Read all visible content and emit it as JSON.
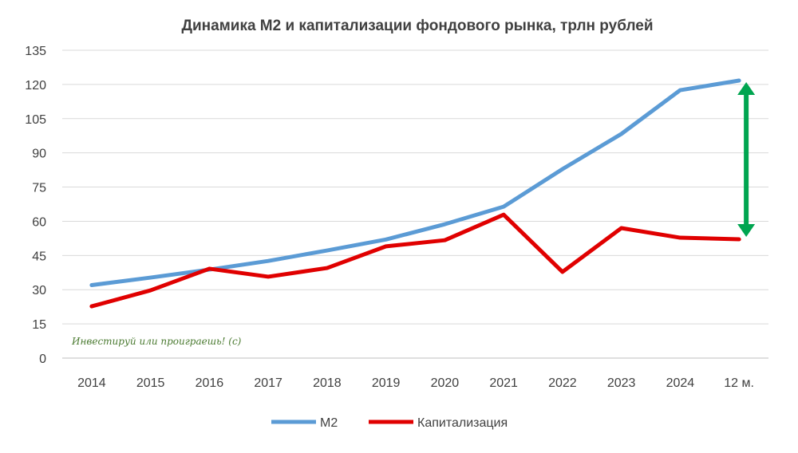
{
  "chart_data": {
    "type": "line",
    "title": "Динамика М2 и капитализации фондового рынка, трлн рублей",
    "categories": [
      "2014",
      "2015",
      "2016",
      "2017",
      "2018",
      "2019",
      "2020",
      "2021",
      "2022",
      "2023",
      "2024",
      "12 м."
    ],
    "series": [
      {
        "name": "М2",
        "color": "#5b9bd5",
        "values": [
          32,
          35.3,
          38.8,
          42.6,
          47.2,
          52,
          58.7,
          66.4,
          82.9,
          98.3,
          117.5,
          121.7
        ]
      },
      {
        "name": "Капитализация",
        "color": "#e00000",
        "values": [
          22.7,
          29.7,
          39.2,
          35.7,
          39.5,
          49,
          51.7,
          62.9,
          37.8,
          57,
          52.8,
          52.1
        ]
      }
    ],
    "ylim": [
      0,
      135
    ],
    "yticks": [
      0,
      15,
      30,
      45,
      60,
      75,
      90,
      105,
      120,
      135
    ],
    "grid": true,
    "legend": "bottom",
    "annotation": {
      "type": "double-arrow",
      "color": "#00a550",
      "at": "12 м.",
      "between": [
        "М2",
        "Капитализация"
      ]
    },
    "watermark": "Инвестируй или проиграешь! (с)"
  }
}
